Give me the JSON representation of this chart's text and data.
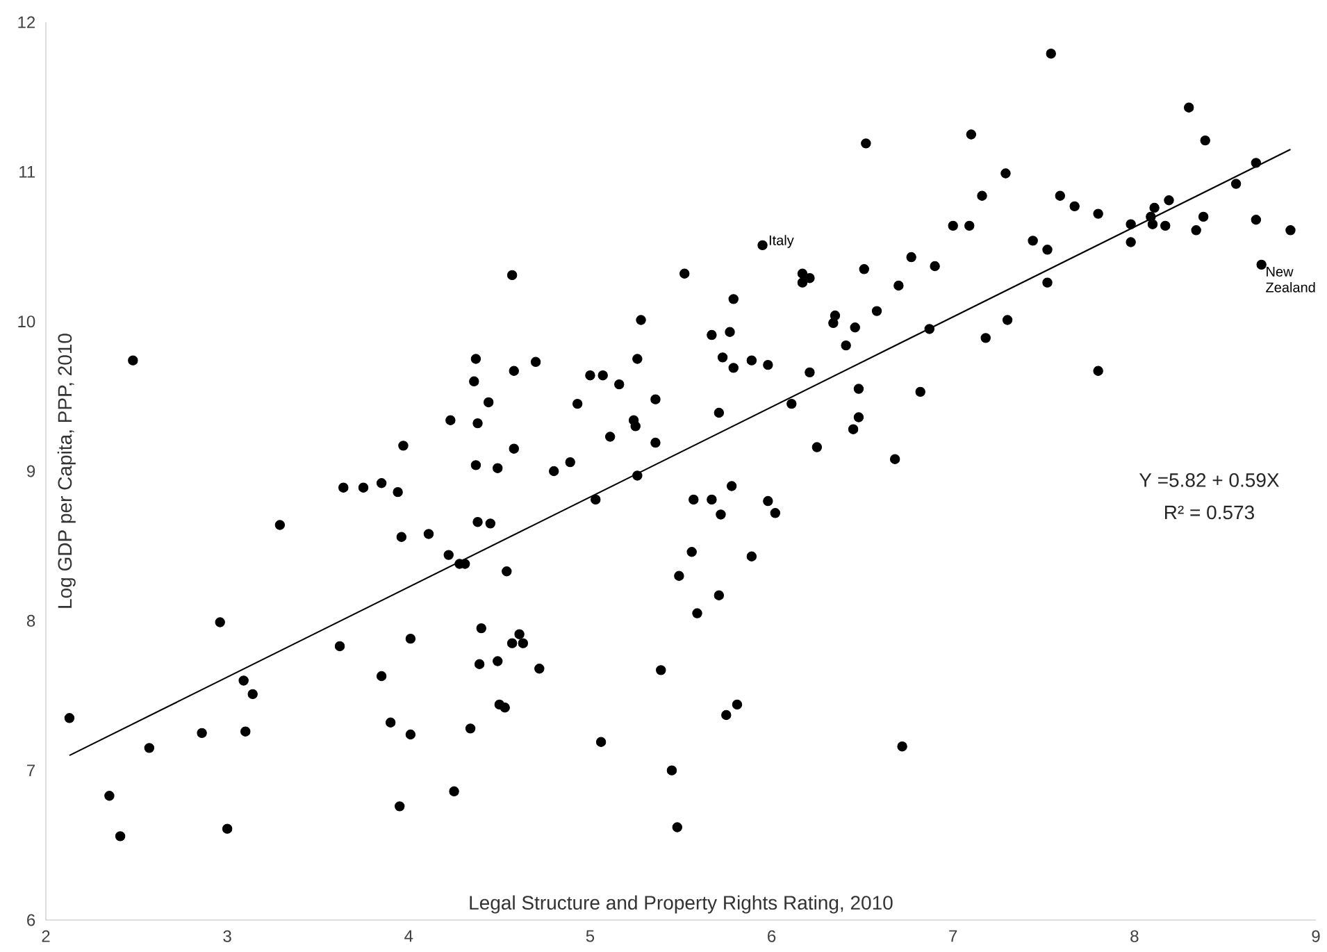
{
  "chart_data": {
    "type": "scatter",
    "xlabel": "Legal Structure and Property Rights Rating, 2010",
    "ylabel": "Log GDP per Capita, PPP, 2010",
    "xlim": [
      2,
      9
    ],
    "ylim": [
      6,
      12
    ],
    "xticks": [
      2,
      3,
      4,
      5,
      6,
      7,
      8,
      9
    ],
    "yticks": [
      6,
      7,
      8,
      9,
      10,
      11,
      12
    ],
    "marker": "circle",
    "series": [
      {
        "color": "#000000",
        "x": [
          2.13,
          2.35,
          2.41,
          2.57,
          2.48,
          2.86,
          2.96,
          3.0,
          3.09,
          3.14,
          3.1,
          3.29,
          3.62,
          3.64,
          3.75,
          3.85,
          3.94,
          3.96,
          4.11,
          3.85,
          3.9,
          3.95,
          4.01,
          4.01,
          3.97,
          4.22,
          4.28,
          4.31,
          4.23,
          4.25,
          6.52,
          5.95,
          4.57,
          5.52,
          6.17,
          6.21,
          6.17,
          6.51,
          6.7,
          5.79,
          5.28,
          6.35,
          6.34,
          6.58,
          6.46,
          5.67,
          5.77,
          6.41,
          4.37,
          4.58,
          4.7,
          5.26,
          5.73,
          5.79,
          5.89,
          5.98,
          4.36,
          5.0,
          5.07,
          5.16,
          6.21,
          4.44,
          4.93,
          5.36,
          6.48,
          6.11,
          4.38,
          5.24,
          5.25,
          5.71,
          6.48,
          6.45,
          5.11,
          5.36,
          4.58,
          6.25,
          6.68,
          4.37,
          4.49,
          4.8,
          4.89,
          5.26,
          7.54,
          8.3,
          7.1,
          8.39,
          7.29,
          8.67,
          7.16,
          7.59,
          7.67,
          7.8,
          8.56,
          7.0,
          7.09,
          7.98,
          8.11,
          8.09,
          8.1,
          8.19,
          8.17,
          8.38,
          8.34,
          8.67,
          8.86,
          7.98,
          8.7,
          7.44,
          7.52,
          7.52,
          6.77,
          6.9,
          6.87,
          7.3,
          7.18,
          7.8,
          6.82,
          5.03,
          5.57,
          5.67,
          5.78,
          5.72,
          5.98,
          6.02,
          4.38,
          4.45,
          4.54,
          5.56,
          5.49,
          5.89,
          5.71,
          5.59,
          4.4,
          4.61,
          4.57,
          4.63,
          4.39,
          4.49,
          4.72,
          5.39,
          4.5,
          4.53,
          5.81,
          5.75,
          4.34,
          5.06,
          5.45,
          5.48,
          6.72
        ],
        "values": [
          7.35,
          6.83,
          6.56,
          7.15,
          9.74,
          7.25,
          7.99,
          6.61,
          7.6,
          7.51,
          7.26,
          8.64,
          7.83,
          8.89,
          8.89,
          8.92,
          8.86,
          8.56,
          8.58,
          7.63,
          7.32,
          6.76,
          7.24,
          7.88,
          9.17,
          8.44,
          8.38,
          8.38,
          9.34,
          6.86,
          11.19,
          10.51,
          10.31,
          10.32,
          10.32,
          10.29,
          10.26,
          10.35,
          10.24,
          10.15,
          10.01,
          10.04,
          9.99,
          10.07,
          9.96,
          9.91,
          9.93,
          9.84,
          9.75,
          9.67,
          9.73,
          9.75,
          9.76,
          9.69,
          9.74,
          9.71,
          9.6,
          9.64,
          9.64,
          9.58,
          9.66,
          9.46,
          9.45,
          9.48,
          9.55,
          9.45,
          9.32,
          9.34,
          9.3,
          9.39,
          9.36,
          9.28,
          9.23,
          9.19,
          9.15,
          9.16,
          9.08,
          9.04,
          9.02,
          9.0,
          9.06,
          8.97,
          11.79,
          11.43,
          11.25,
          11.21,
          10.99,
          11.06,
          10.84,
          10.84,
          10.77,
          10.72,
          10.92,
          10.64,
          10.64,
          10.65,
          10.76,
          10.7,
          10.65,
          10.81,
          10.64,
          10.7,
          10.61,
          10.68,
          10.61,
          10.53,
          10.38,
          10.54,
          10.48,
          10.26,
          10.43,
          10.37,
          9.95,
          10.01,
          9.89,
          9.67,
          9.53,
          8.81,
          8.81,
          8.81,
          8.9,
          8.71,
          8.8,
          8.72,
          8.66,
          8.65,
          8.33,
          8.46,
          8.3,
          8.43,
          8.17,
          8.05,
          7.95,
          7.91,
          7.85,
          7.85,
          7.71,
          7.73,
          7.68,
          7.67,
          7.44,
          7.42,
          7.44,
          7.37,
          7.28,
          7.19,
          7.0,
          6.62,
          7.16
        ]
      },
      {
        "type": "line",
        "color": "#000000",
        "marker": "none",
        "x": [
          2.13,
          8.86
        ],
        "values": [
          7.1,
          11.15
        ]
      }
    ],
    "annotations": [
      {
        "text": "Italy",
        "x": 5.95,
        "y": 10.51
      },
      {
        "text": "New Zealand",
        "x": 8.7,
        "y": 10.38
      },
      "Y =5.82 + 0.59X",
      "R² = 0.573"
    ]
  }
}
